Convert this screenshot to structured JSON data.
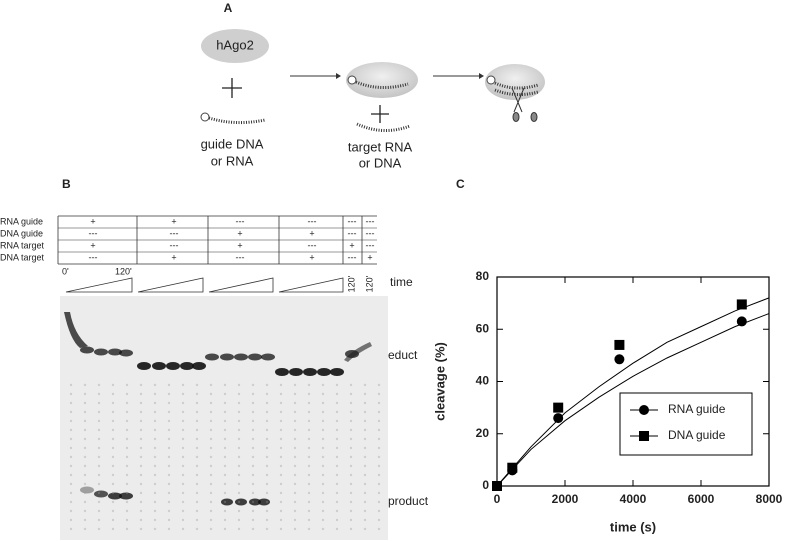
{
  "panel_a": {
    "label": "A",
    "protein": "hAgo2",
    "guide": [
      "guide DNA",
      "or RNA"
    ],
    "target": [
      "target RNA",
      "or DNA"
    ]
  },
  "panel_b": {
    "label": "B",
    "row_labels": [
      "RNA guide",
      "DNA guide",
      "RNA target",
      "DNA target"
    ],
    "cells": [
      [
        "+",
        "+",
        "---",
        "---",
        "---",
        "---"
      ],
      [
        "---",
        "---",
        "+",
        "+",
        "---",
        "---"
      ],
      [
        "+",
        "---",
        "+",
        "---",
        "+",
        "---"
      ],
      [
        "---",
        "+",
        "---",
        "+",
        "---",
        "+"
      ]
    ],
    "time_start": "0'",
    "time_end": "120'",
    "single_lane_time": "120'",
    "time": "time",
    "educt": "educt",
    "product": "product"
  },
  "chart_data": {
    "type": "scatter",
    "panel_label": "C",
    "xlabel": "time (s)",
    "ylabel": "cleavage (%)",
    "xlim": [
      0,
      8000
    ],
    "ylim": [
      0,
      80
    ],
    "xticks": [
      0,
      2000,
      4000,
      6000,
      8000
    ],
    "yticks": [
      0,
      20,
      40,
      60,
      80
    ],
    "legend": "lower right",
    "series": [
      {
        "name": "RNA guide",
        "marker": "circle",
        "color": "#000000",
        "x": [
          0,
          450,
          1800,
          3600,
          7200
        ],
        "values": [
          0,
          6,
          26,
          48.5,
          63
        ]
      },
      {
        "name": "DNA guide",
        "marker": "square",
        "color": "#000000",
        "x": [
          0,
          450,
          1800,
          3600,
          7200
        ],
        "values": [
          0,
          7,
          30,
          54,
          69.5
        ]
      }
    ],
    "fit_lines": [
      {
        "x": [
          0,
          1000,
          2000,
          3000,
          4000,
          5000,
          6000,
          7000,
          8000
        ],
        "values": [
          0,
          14,
          25,
          34,
          42,
          49,
          55,
          61,
          66
        ]
      },
      {
        "x": [
          0,
          1000,
          2000,
          3000,
          4000,
          5000,
          6000,
          7000,
          8000
        ],
        "values": [
          0,
          15,
          28,
          38,
          47,
          55,
          61,
          67,
          72
        ]
      }
    ]
  }
}
